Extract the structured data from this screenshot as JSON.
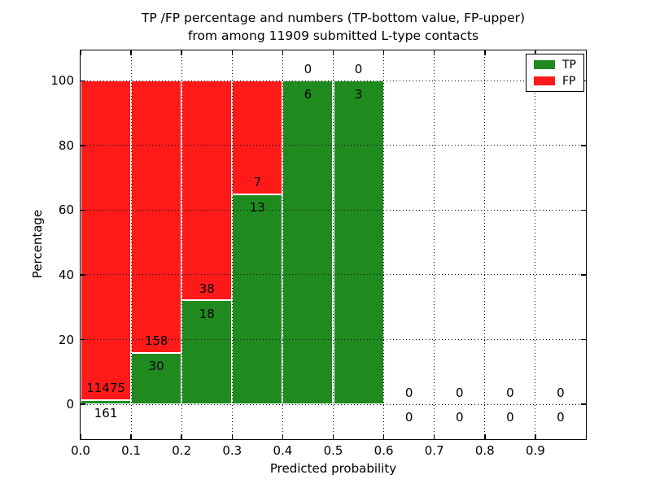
{
  "chart_data": {
    "type": "bar",
    "stacked": true,
    "title_line1": "TP /FP percentage and numbers (TP-bottom value, FP-upper)",
    "title_line2": "from among 11909 submitted L-type contacts",
    "xlabel": "Predicted probability",
    "ylabel": "Percentage",
    "total_submitted_contacts": 11909,
    "xlim": [
      0.0,
      1.0
    ],
    "ylim": [
      -10.8,
      109.4
    ],
    "grid": "dotted",
    "legend": {
      "position": "upper-right",
      "entries": [
        {
          "label": "TP",
          "color": "#1f8b1f"
        },
        {
          "label": "FP",
          "color": "#ff1a1a"
        }
      ]
    },
    "colors": {
      "tp": "#1f8b1f",
      "fp": "#ff1a1a",
      "bar_edge": "#ffffff",
      "text": "#000000",
      "background": "#ffffff"
    },
    "xticks": {
      "values": [
        0.0,
        0.1,
        0.2,
        0.3,
        0.4,
        0.5,
        0.6,
        0.7,
        0.8,
        0.9
      ],
      "labels": [
        "0.0",
        "0.1",
        "0.2",
        "0.3",
        "0.4",
        "0.5",
        "0.6",
        "0.7",
        "0.8",
        "0.9"
      ]
    },
    "yticks": {
      "values": [
        0,
        20,
        40,
        60,
        80,
        100
      ],
      "labels": [
        "0",
        "20",
        "40",
        "60",
        "80",
        "100"
      ]
    },
    "bins": [
      {
        "range": [
          0.0,
          0.1
        ],
        "tp": 161,
        "fp": 11475,
        "tp_percent": 1.4
      },
      {
        "range": [
          0.1,
          0.2
        ],
        "tp": 30,
        "fp": 158,
        "tp_percent": 16.0
      },
      {
        "range": [
          0.2,
          0.3
        ],
        "tp": 18,
        "fp": 38,
        "tp_percent": 32.1
      },
      {
        "range": [
          0.3,
          0.4
        ],
        "tp": 13,
        "fp": 7,
        "tp_percent": 65.0
      },
      {
        "range": [
          0.4,
          0.5
        ],
        "tp": 6,
        "fp": 0,
        "tp_percent": 100.0
      },
      {
        "range": [
          0.5,
          0.6
        ],
        "tp": 3,
        "fp": 0,
        "tp_percent": 100.0
      },
      {
        "range": [
          0.6,
          0.7
        ],
        "tp": 0,
        "fp": 0,
        "tp_percent": 0
      },
      {
        "range": [
          0.7,
          0.8
        ],
        "tp": 0,
        "fp": 0,
        "tp_percent": 0
      },
      {
        "range": [
          0.8,
          0.9
        ],
        "tp": 0,
        "fp": 0,
        "tp_percent": 0
      },
      {
        "range": [
          0.9,
          1.0
        ],
        "tp": 0,
        "fp": 0,
        "tp_percent": 0
      }
    ]
  }
}
